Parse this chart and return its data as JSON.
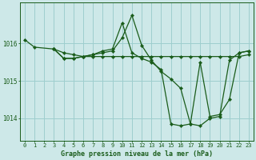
{
  "title": "Graphe pression niveau de la mer (hPa)",
  "bg_color": "#cde8e8",
  "grid_color": "#9ecece",
  "line_color": "#1a5c1a",
  "xlim": [
    -0.5,
    23.5
  ],
  "ylim": [
    1013.4,
    1017.1
  ],
  "yticks": [
    1014,
    1015,
    1016
  ],
  "xticks": [
    0,
    1,
    2,
    3,
    4,
    5,
    6,
    7,
    8,
    9,
    10,
    11,
    12,
    13,
    14,
    15,
    16,
    17,
    18,
    19,
    20,
    21,
    22,
    23
  ],
  "series": [
    {
      "x": [
        0,
        1,
        3,
        4,
        5,
        6,
        7,
        8,
        9,
        10,
        11,
        12,
        13,
        14,
        15,
        16,
        17,
        18,
        19,
        20,
        21,
        22,
        23
      ],
      "y": [
        1016.1,
        1015.9,
        1015.85,
        1015.75,
        1015.7,
        1015.65,
        1015.65,
        1015.65,
        1015.65,
        1015.65,
        1015.65,
        1015.65,
        1015.65,
        1015.65,
        1015.65,
        1015.65,
        1015.65,
        1015.65,
        1015.65,
        1015.65,
        1015.65,
        1015.65,
        1015.7
      ]
    },
    {
      "x": [
        3,
        4,
        5,
        6,
        7,
        8,
        9,
        10,
        11,
        12,
        13,
        14,
        15,
        16,
        17,
        18,
        19,
        20,
        21,
        22,
        23
      ],
      "y": [
        1015.85,
        1015.6,
        1015.6,
        1015.65,
        1015.7,
        1015.75,
        1015.8,
        1016.15,
        1016.75,
        1015.95,
        1015.55,
        1015.25,
        1015.05,
        1014.8,
        1013.85,
        1013.8,
        1014.0,
        1014.05,
        1015.55,
        1015.75,
        1015.8
      ]
    },
    {
      "x": [
        3,
        4,
        5,
        6,
        7,
        8,
        9,
        10,
        11,
        12,
        13,
        14,
        15,
        16,
        17,
        18,
        19,
        20,
        21,
        22,
        23
      ],
      "y": [
        1015.85,
        1015.6,
        1015.6,
        1015.65,
        1015.7,
        1015.8,
        1015.85,
        1016.55,
        1015.75,
        1015.6,
        1015.5,
        1015.3,
        1013.85,
        1013.8,
        1013.85,
        1015.5,
        1014.05,
        1014.1,
        1014.5,
        1015.75,
        1015.8
      ]
    }
  ]
}
